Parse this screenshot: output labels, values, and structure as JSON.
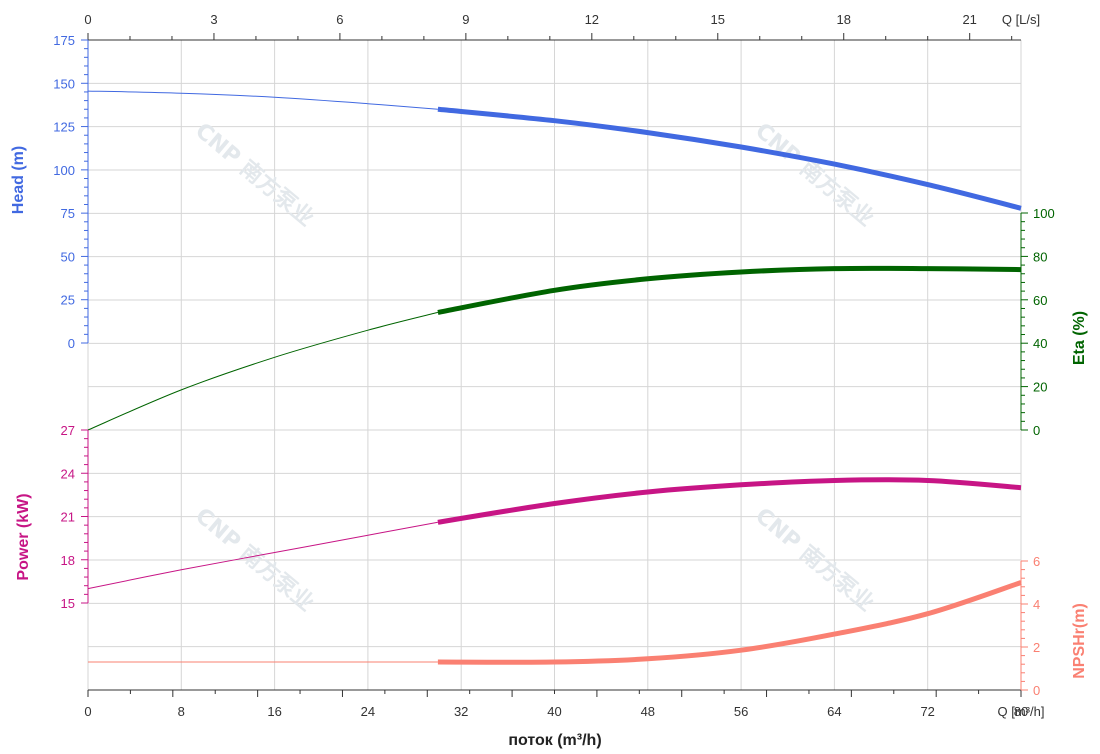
{
  "chart_data": {
    "type": "line",
    "xlabel": "поток (m³/h)",
    "x_unit_bottom": "Q [m³/h]",
    "x_unit_top": "Q [L/s]",
    "x_bottom_ticks": [
      "0",
      "8",
      "16",
      "24",
      "32",
      "40",
      "48",
      "56",
      "64",
      "72",
      "80"
    ],
    "x_top_ticks": [
      "0",
      "3",
      "6",
      "9",
      "12",
      "15",
      "18",
      "21"
    ],
    "xlim": [
      0,
      80
    ],
    "grid": true,
    "watermark": "CNP 南方泵业",
    "axes": {
      "head": {
        "label": "Head (m)",
        "ticks": [
          "175",
          "150",
          "125",
          "100",
          "75",
          "50",
          "25",
          "0"
        ],
        "color": "#4169e1"
      },
      "eta": {
        "label": "Eta (%)",
        "ticks": [
          "100",
          "80",
          "60",
          "40",
          "20",
          "0"
        ],
        "color": "#006400"
      },
      "power": {
        "label": "Power (kW)",
        "ticks": [
          "27",
          "24",
          "21",
          "18",
          "15"
        ],
        "color": "#c71585"
      },
      "npsh": {
        "label": "NPSHr(m)",
        "ticks": [
          "6",
          "4",
          "2",
          "0"
        ],
        "color": "#fa8072"
      }
    },
    "operating_range_start": 30,
    "series": [
      {
        "name": "Head (m)",
        "axis": "head",
        "color": "#4169e1",
        "x": [
          0,
          8,
          16,
          24,
          30,
          40,
          48,
          56,
          64,
          72,
          80
        ],
        "y": [
          145.5,
          144.3,
          141.9,
          138.2,
          135,
          128.4,
          121.5,
          113.2,
          103.3,
          91.5,
          77.8
        ]
      },
      {
        "name": "Eta (%)",
        "axis": "eta",
        "color": "#006400",
        "x": [
          0,
          8,
          16,
          24,
          30,
          40,
          48,
          56,
          64,
          72,
          80
        ],
        "y": [
          0,
          18.5,
          33.5,
          46,
          54.2,
          64.4,
          69.7,
          72.8,
          74.4,
          74.4,
          73.9
        ]
      },
      {
        "name": "Power (kW)",
        "axis": "power",
        "color": "#c71585",
        "x": [
          0,
          8,
          16,
          24,
          30,
          40,
          48,
          56,
          64,
          72,
          80
        ],
        "y": [
          16,
          17.3,
          18.5,
          19.7,
          20.6,
          21.9,
          22.7,
          23.2,
          23.5,
          23.5,
          23.0
        ]
      },
      {
        "name": "NPSHr(m)",
        "axis": "npsh",
        "color": "#fa8072",
        "x": [
          0,
          8,
          16,
          24,
          30,
          40,
          48,
          56,
          64,
          72,
          80
        ],
        "y": [
          1.3,
          1.3,
          1.3,
          1.3,
          1.3,
          1.3,
          1.45,
          1.85,
          2.6,
          3.55,
          5.0
        ]
      }
    ]
  }
}
